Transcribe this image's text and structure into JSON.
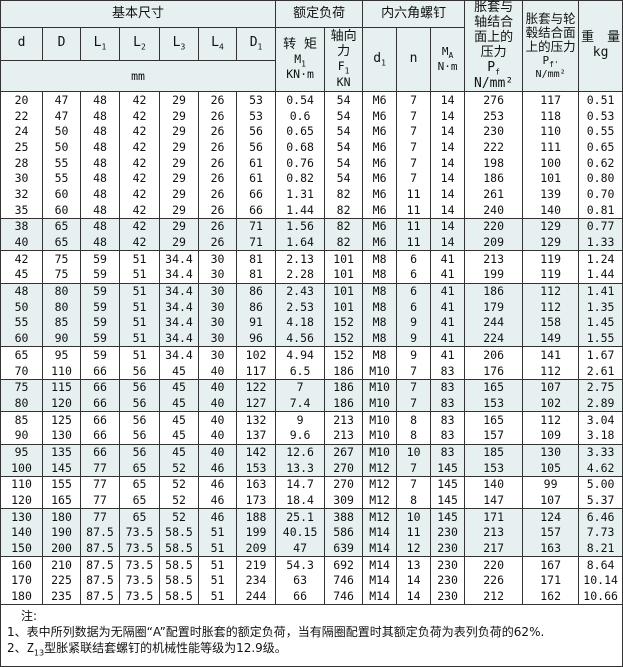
{
  "header": {
    "basic_dimensions": "基本尺寸",
    "rated_load": "额定负荷",
    "hex_screw": "内六角螺钉",
    "pressure_shaft": "胀套与轴结合面上的压力",
    "pressure_shaft_sym": {
      "base": "P",
      "sub": "f"
    },
    "pressure_shaft_unit": "N/mm²",
    "pressure_hub": "胀套与轮毂结合面上的压力",
    "pressure_hub_sym": {
      "base": "P",
      "sub": "f'"
    },
    "pressure_hub_unit": "N/mm²",
    "weight": "重　量",
    "weight_unit": "kg",
    "dims": [
      {
        "base": "d",
        "sub": ""
      },
      {
        "base": "D",
        "sub": ""
      },
      {
        "base": "L",
        "sub": "1"
      },
      {
        "base": "L",
        "sub": "2"
      },
      {
        "base": "L",
        "sub": "3"
      },
      {
        "base": "L",
        "sub": "4"
      },
      {
        "base": "D",
        "sub": "1"
      }
    ],
    "dims_unit": "mm",
    "torque": "转 矩",
    "torque_sym": {
      "base": "M",
      "sub": "1"
    },
    "torque_unit": "KN·m",
    "axial": "轴向力",
    "axial_sym": {
      "base": "F",
      "sub": "1"
    },
    "axial_unit": "KN",
    "screw_d": {
      "base": "d",
      "sub": "1"
    },
    "screw_n": "n",
    "screw_m": {
      "base": "M",
      "sub": "A"
    },
    "screw_m_unit": "N·m"
  },
  "groups": [
    {
      "shaded": false,
      "rows": [
        [
          "20",
          "47",
          "48",
          "42",
          "29",
          "26",
          "53",
          "0.54",
          "54",
          "M6",
          "7",
          "14",
          "276",
          "117",
          "0.51"
        ],
        [
          "22",
          "47",
          "48",
          "42",
          "29",
          "26",
          "53",
          "0.6",
          "54",
          "M6",
          "7",
          "14",
          "253",
          "118",
          "0.53"
        ],
        [
          "24",
          "50",
          "48",
          "42",
          "29",
          "26",
          "56",
          "0.65",
          "54",
          "M6",
          "7",
          "14",
          "230",
          "110",
          "0.55"
        ],
        [
          "25",
          "50",
          "48",
          "42",
          "29",
          "26",
          "56",
          "0.68",
          "54",
          "M6",
          "7",
          "14",
          "222",
          "111",
          "0.65"
        ],
        [
          "28",
          "55",
          "48",
          "42",
          "29",
          "26",
          "61",
          "0.76",
          "54",
          "M6",
          "7",
          "14",
          "198",
          "100",
          "0.62"
        ],
        [
          "30",
          "55",
          "48",
          "42",
          "29",
          "26",
          "61",
          "0.82",
          "54",
          "M6",
          "7",
          "14",
          "186",
          "101",
          "0.80"
        ],
        [
          "32",
          "60",
          "48",
          "42",
          "29",
          "26",
          "66",
          "1.31",
          "82",
          "M6",
          "11",
          "14",
          "261",
          "139",
          "0.70"
        ],
        [
          "35",
          "60",
          "48",
          "42",
          "29",
          "26",
          "66",
          "1.44",
          "82",
          "M6",
          "11",
          "14",
          "240",
          "140",
          "0.81"
        ]
      ]
    },
    {
      "shaded": true,
      "rows": [
        [
          "38",
          "65",
          "48",
          "42",
          "29",
          "26",
          "71",
          "1.56",
          "82",
          "M6",
          "11",
          "14",
          "220",
          "129",
          "0.77"
        ],
        [
          "40",
          "65",
          "48",
          "42",
          "29",
          "26",
          "71",
          "1.64",
          "82",
          "M6",
          "11",
          "14",
          "209",
          "129",
          "1.33"
        ]
      ]
    },
    {
      "shaded": false,
      "rows": [
        [
          "42",
          "75",
          "59",
          "51",
          "34.4",
          "30",
          "81",
          "2.13",
          "101",
          "M8",
          "6",
          "41",
          "213",
          "119",
          "1.24"
        ],
        [
          "45",
          "75",
          "59",
          "51",
          "34.4",
          "30",
          "81",
          "2.28",
          "101",
          "M8",
          "6",
          "41",
          "199",
          "119",
          "1.44"
        ]
      ]
    },
    {
      "shaded": true,
      "rows": [
        [
          "48",
          "80",
          "59",
          "51",
          "34.4",
          "30",
          "86",
          "2.43",
          "101",
          "M8",
          "6",
          "41",
          "186",
          "112",
          "1.41"
        ],
        [
          "50",
          "80",
          "59",
          "51",
          "34.4",
          "30",
          "86",
          "2.53",
          "101",
          "M8",
          "6",
          "41",
          "179",
          "112",
          "1.35"
        ],
        [
          "55",
          "85",
          "59",
          "51",
          "34.4",
          "30",
          "91",
          "4.18",
          "152",
          "M8",
          "9",
          "41",
          "244",
          "158",
          "1.45"
        ],
        [
          "60",
          "90",
          "59",
          "51",
          "34.4",
          "30",
          "96",
          "4.56",
          "152",
          "M8",
          "9",
          "41",
          "224",
          "149",
          "1.55"
        ]
      ]
    },
    {
      "shaded": false,
      "rows": [
        [
          "65",
          "95",
          "59",
          "51",
          "34.4",
          "30",
          "102",
          "4.94",
          "152",
          "M8",
          "9",
          "41",
          "206",
          "141",
          "1.67"
        ],
        [
          "70",
          "110",
          "66",
          "56",
          "45",
          "40",
          "117",
          "6.5",
          "186",
          "M10",
          "7",
          "83",
          "176",
          "112",
          "2.61"
        ]
      ]
    },
    {
      "shaded": true,
      "rows": [
        [
          "75",
          "115",
          "66",
          "56",
          "45",
          "40",
          "122",
          "7",
          "186",
          "M10",
          "7",
          "83",
          "165",
          "107",
          "2.75"
        ],
        [
          "80",
          "120",
          "66",
          "56",
          "45",
          "40",
          "127",
          "7.4",
          "186",
          "M10",
          "7",
          "83",
          "153",
          "102",
          "2.89"
        ]
      ]
    },
    {
      "shaded": false,
      "rows": [
        [
          "85",
          "125",
          "66",
          "56",
          "45",
          "40",
          "132",
          "9",
          "213",
          "M10",
          "8",
          "83",
          "165",
          "112",
          "3.04"
        ],
        [
          "90",
          "130",
          "66",
          "56",
          "45",
          "40",
          "137",
          "9.6",
          "213",
          "M10",
          "8",
          "83",
          "157",
          "109",
          "3.18"
        ]
      ]
    },
    {
      "shaded": true,
      "rows": [
        [
          "95",
          "135",
          "66",
          "56",
          "45",
          "40",
          "142",
          "12.6",
          "267",
          "M10",
          "10",
          "83",
          "185",
          "130",
          "3.33"
        ],
        [
          "100",
          "145",
          "77",
          "65",
          "52",
          "46",
          "153",
          "13.3",
          "270",
          "M12",
          "7",
          "145",
          "153",
          "105",
          "4.62"
        ]
      ]
    },
    {
      "shaded": false,
      "rows": [
        [
          "110",
          "155",
          "77",
          "65",
          "52",
          "46",
          "163",
          "14.7",
          "270",
          "M12",
          "7",
          "145",
          "140",
          "99",
          "5.00"
        ],
        [
          "120",
          "165",
          "77",
          "65",
          "52",
          "46",
          "173",
          "18.4",
          "309",
          "M12",
          "8",
          "145",
          "147",
          "107",
          "5.37"
        ]
      ]
    },
    {
      "shaded": true,
      "rows": [
        [
          "130",
          "180",
          "77",
          "65",
          "52",
          "46",
          "188",
          "25.1",
          "388",
          "M12",
          "10",
          "145",
          "171",
          "124",
          "6.46"
        ],
        [
          "140",
          "190",
          "87.5",
          "73.5",
          "58.5",
          "51",
          "199",
          "40.15",
          "586",
          "M14",
          "11",
          "230",
          "213",
          "157",
          "7.73"
        ],
        [
          "150",
          "200",
          "87.5",
          "73.5",
          "58.5",
          "51",
          "209",
          "47",
          "639",
          "M14",
          "12",
          "230",
          "217",
          "163",
          "8.21"
        ]
      ]
    },
    {
      "shaded": false,
      "rows": [
        [
          "160",
          "210",
          "87.5",
          "73.5",
          "58.5",
          "51",
          "219",
          "54.3",
          "692",
          "M14",
          "13",
          "230",
          "220",
          "167",
          "8.64"
        ],
        [
          "170",
          "225",
          "87.5",
          "73.5",
          "58.5",
          "51",
          "234",
          "63",
          "746",
          "M14",
          "14",
          "230",
          "226",
          "171",
          "10.14"
        ],
        [
          "180",
          "235",
          "87.5",
          "73.5",
          "58.5",
          "51",
          "244",
          "66",
          "746",
          "M14",
          "14",
          "230",
          "212",
          "162",
          "10.66"
        ]
      ]
    }
  ],
  "notes": {
    "title": "注:",
    "line1": "1、表中所列数据为无隔圈“A”配置时胀套的额定负荷，当有隔圈配置时其额定负荷为表列负荷的62%.",
    "line2_prefix": "2、",
    "line2_sym": {
      "base": "Z",
      "sub": "13"
    },
    "line2_rest": "型胀紧联结套螺钉的机械性能等级为12.9级。"
  },
  "colors": {
    "header_bg": "#e6f0f0",
    "shaded_bg": "#e6f0f0",
    "border": "#333333"
  }
}
